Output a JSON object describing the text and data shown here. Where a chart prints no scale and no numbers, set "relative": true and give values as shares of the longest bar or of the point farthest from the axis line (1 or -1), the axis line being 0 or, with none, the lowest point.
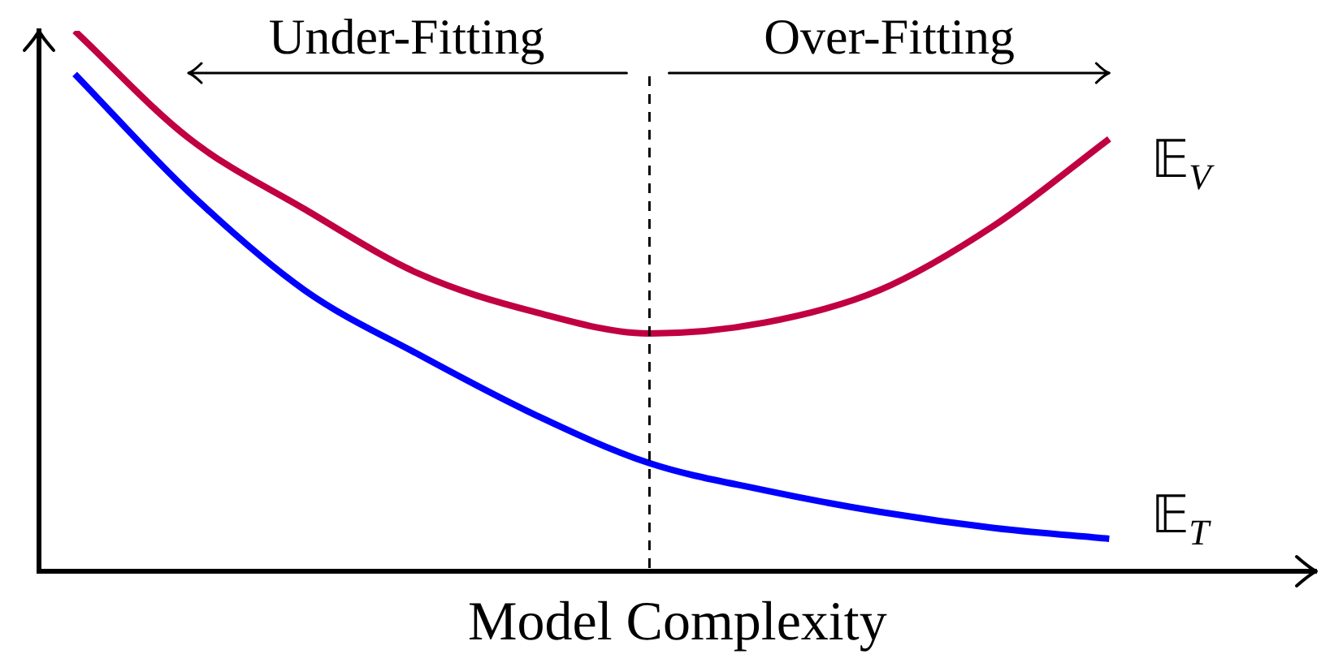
{
  "chart_data": {
    "type": "line",
    "relative": true,
    "xlabel": "Model Complexity",
    "categories": [
      null,
      null,
      null,
      null,
      null,
      null,
      null,
      null,
      null,
      null
    ],
    "series": [
      {
        "name": "𝔼$_{V}$",
        "color": "#c00040",
        "values": [
          1,
          0.8,
          0.67,
          0.55,
          0.48,
          0.44,
          0.46,
          0.52,
          0.64,
          0.8
        ]
      },
      {
        "name": "𝔼$_{T}$",
        "color": "#0000ff",
        "values": [
          0.92,
          0.7,
          0.52,
          0.4,
          0.29,
          0.2,
          0.15,
          0.11,
          0.08,
          0.06
        ]
      }
    ],
    "annotations": [
      "Under-Fitting",
      "Over-Fitting"
    ],
    "tick_labels": false,
    "grid": false,
    "legend": false,
    "marker": "none",
    "line_style": "solid"
  }
}
